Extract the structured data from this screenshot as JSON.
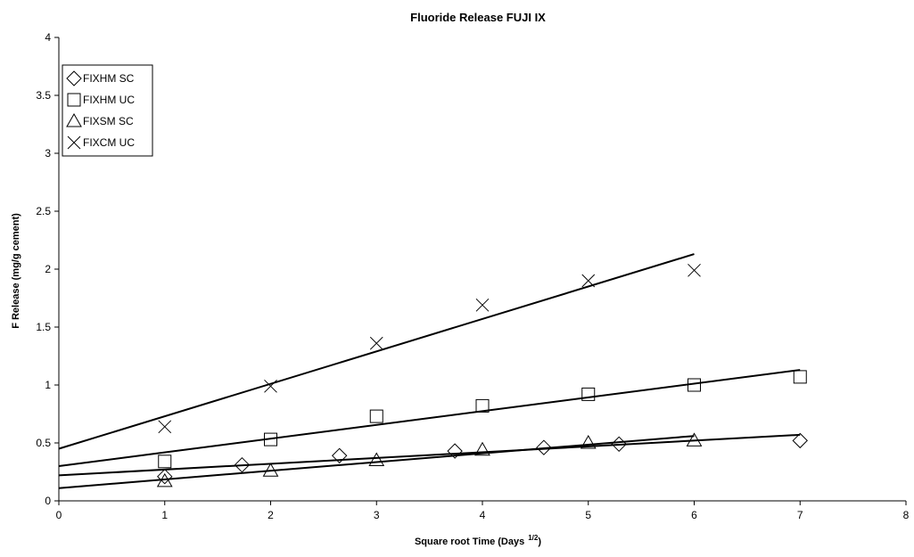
{
  "chart_data": {
    "type": "scatter",
    "title": "Fluoride Release FUJI IX",
    "xlabel": "Square root Time (Days",
    "xlabel_sup": "1/2",
    "xlabel_end": ")",
    "ylabel": "F Release (mg/g cement)",
    "xlim": [
      0,
      8
    ],
    "ylim": [
      0,
      4
    ],
    "xticks": [
      "0",
      "1",
      "2",
      "3",
      "4",
      "5",
      "6",
      "7",
      "8"
    ],
    "yticks": [
      "0",
      "0.5",
      "1",
      "1.5",
      "2",
      "2.5",
      "3",
      "3.5",
      "4"
    ],
    "grid": false,
    "legend_position": "top-left",
    "series": [
      {
        "name": "FIXHM SC",
        "marker": "diamond",
        "x": [
          1,
          1.73,
          2.65,
          3.74,
          4.58,
          5.29,
          7
        ],
        "y": [
          0.21,
          0.31,
          0.39,
          0.43,
          0.46,
          0.49,
          0.52
        ],
        "trendline": {
          "x": [
            0,
            7
          ],
          "y": [
            0.22,
            0.57
          ]
        }
      },
      {
        "name": "FIXHM UC",
        "marker": "square",
        "x": [
          1,
          2,
          3,
          4,
          5,
          6,
          7
        ],
        "y": [
          0.34,
          0.53,
          0.73,
          0.82,
          0.92,
          1.0,
          1.07
        ],
        "trendline": {
          "x": [
            0,
            7
          ],
          "y": [
            0.3,
            1.13
          ]
        }
      },
      {
        "name": "FIXSM SC",
        "marker": "triangle",
        "x": [
          1,
          2,
          3,
          4,
          5,
          6
        ],
        "y": [
          0.17,
          0.26,
          0.35,
          0.44,
          0.5,
          0.52
        ],
        "trendline": {
          "x": [
            0,
            6
          ],
          "y": [
            0.11,
            0.56
          ]
        }
      },
      {
        "name": "FIXCM UC",
        "marker": "cross",
        "x": [
          1,
          2,
          3,
          4,
          5,
          6
        ],
        "y": [
          0.64,
          0.99,
          1.36,
          1.69,
          1.9,
          1.99
        ],
        "trendline": {
          "x": [
            0,
            6
          ],
          "y": [
            0.45,
            2.13
          ]
        }
      }
    ]
  }
}
